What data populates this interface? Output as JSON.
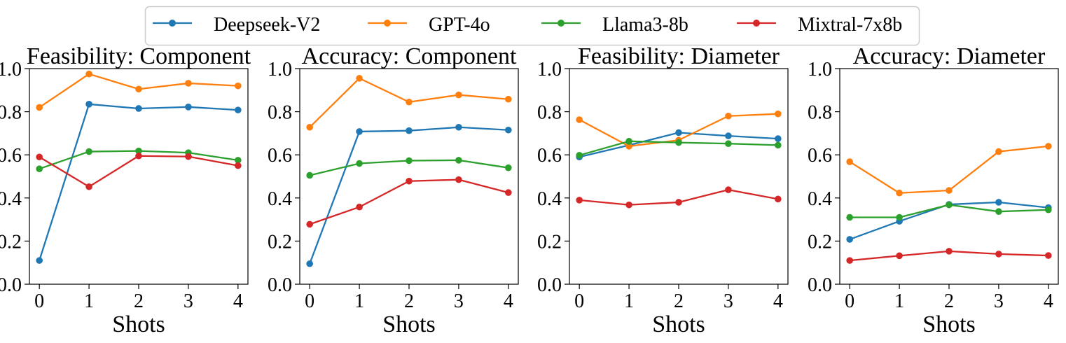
{
  "legend": {
    "position": "top-center",
    "entries": [
      {
        "label": "Deepseek-V2",
        "color": "#1f77b4"
      },
      {
        "label": "GPT-4o",
        "color": "#ff7f0e"
      },
      {
        "label": "Llama3-8b",
        "color": "#2ca02c"
      },
      {
        "label": "Mixtral-7x8b",
        "color": "#d62728"
      }
    ]
  },
  "chart_data": [
    {
      "type": "line",
      "title": "Feasibility: Component",
      "xlabel": "Shots",
      "ylabel": "",
      "x": [
        0,
        1,
        2,
        3,
        4
      ],
      "ylim": [
        0.0,
        1.0
      ],
      "yticks": [
        "0.0",
        "0.2",
        "0.4",
        "0.6",
        "0.8",
        "1.0"
      ],
      "xticks": [
        "0",
        "1",
        "2",
        "3",
        "4"
      ],
      "series": [
        {
          "name": "Deepseek-V2",
          "values": [
            0.11,
            0.835,
            0.815,
            0.822,
            0.808
          ]
        },
        {
          "name": "GPT-4o",
          "values": [
            0.82,
            0.975,
            0.905,
            0.932,
            0.92
          ]
        },
        {
          "name": "Llama3-8b",
          "values": [
            0.535,
            0.615,
            0.618,
            0.61,
            0.575
          ]
        },
        {
          "name": "Mixtral-7x8b",
          "values": [
            0.59,
            0.452,
            0.595,
            0.592,
            0.55
          ]
        }
      ]
    },
    {
      "type": "line",
      "title": "Accuracy: Component",
      "xlabel": "Shots",
      "ylabel": "",
      "x": [
        0,
        1,
        2,
        3,
        4
      ],
      "ylim": [
        0.0,
        1.0
      ],
      "yticks": [
        "0.0",
        "0.2",
        "0.4",
        "0.6",
        "0.8",
        "1.0"
      ],
      "xticks": [
        "0",
        "1",
        "2",
        "3",
        "4"
      ],
      "series": [
        {
          "name": "Deepseek-V2",
          "values": [
            0.095,
            0.708,
            0.712,
            0.728,
            0.715
          ]
        },
        {
          "name": "GPT-4o",
          "values": [
            0.728,
            0.955,
            0.845,
            0.878,
            0.858
          ]
        },
        {
          "name": "Llama3-8b",
          "values": [
            0.505,
            0.56,
            0.573,
            0.575,
            0.54
          ]
        },
        {
          "name": "Mixtral-7x8b",
          "values": [
            0.278,
            0.358,
            0.478,
            0.485,
            0.425
          ]
        }
      ]
    },
    {
      "type": "line",
      "title": "Feasibility: Diameter",
      "xlabel": "Shots",
      "ylabel": "",
      "x": [
        0,
        1,
        2,
        3,
        4
      ],
      "ylim": [
        0.0,
        1.0
      ],
      "yticks": [
        "0.0",
        "0.2",
        "0.4",
        "0.6",
        "0.8",
        "1.0"
      ],
      "xticks": [
        "0",
        "1",
        "2",
        "3",
        "4"
      ],
      "series": [
        {
          "name": "Deepseek-V2",
          "values": [
            0.59,
            0.645,
            0.703,
            0.688,
            0.675
          ]
        },
        {
          "name": "GPT-4o",
          "values": [
            0.763,
            0.64,
            0.668,
            0.78,
            0.79
          ]
        },
        {
          "name": "Llama3-8b",
          "values": [
            0.598,
            0.663,
            0.657,
            0.652,
            0.645
          ]
        },
        {
          "name": "Mixtral-7x8b",
          "values": [
            0.39,
            0.368,
            0.38,
            0.438,
            0.395
          ]
        }
      ]
    },
    {
      "type": "line",
      "title": "Accuracy: Diameter",
      "xlabel": "Shots",
      "ylabel": "",
      "x": [
        0,
        1,
        2,
        3,
        4
      ],
      "ylim": [
        0.0,
        1.0
      ],
      "yticks": [
        "0.0",
        "0.2",
        "0.4",
        "0.6",
        "0.8",
        "1.0"
      ],
      "xticks": [
        "0",
        "1",
        "2",
        "3",
        "4"
      ],
      "series": [
        {
          "name": "Deepseek-V2",
          "values": [
            0.208,
            0.292,
            0.37,
            0.38,
            0.355
          ]
        },
        {
          "name": "GPT-4o",
          "values": [
            0.568,
            0.423,
            0.435,
            0.615,
            0.64
          ]
        },
        {
          "name": "Llama3-8b",
          "values": [
            0.31,
            0.31,
            0.368,
            0.337,
            0.345
          ]
        },
        {
          "name": "Mixtral-7x8b",
          "values": [
            0.11,
            0.132,
            0.153,
            0.14,
            0.133
          ]
        }
      ]
    }
  ]
}
